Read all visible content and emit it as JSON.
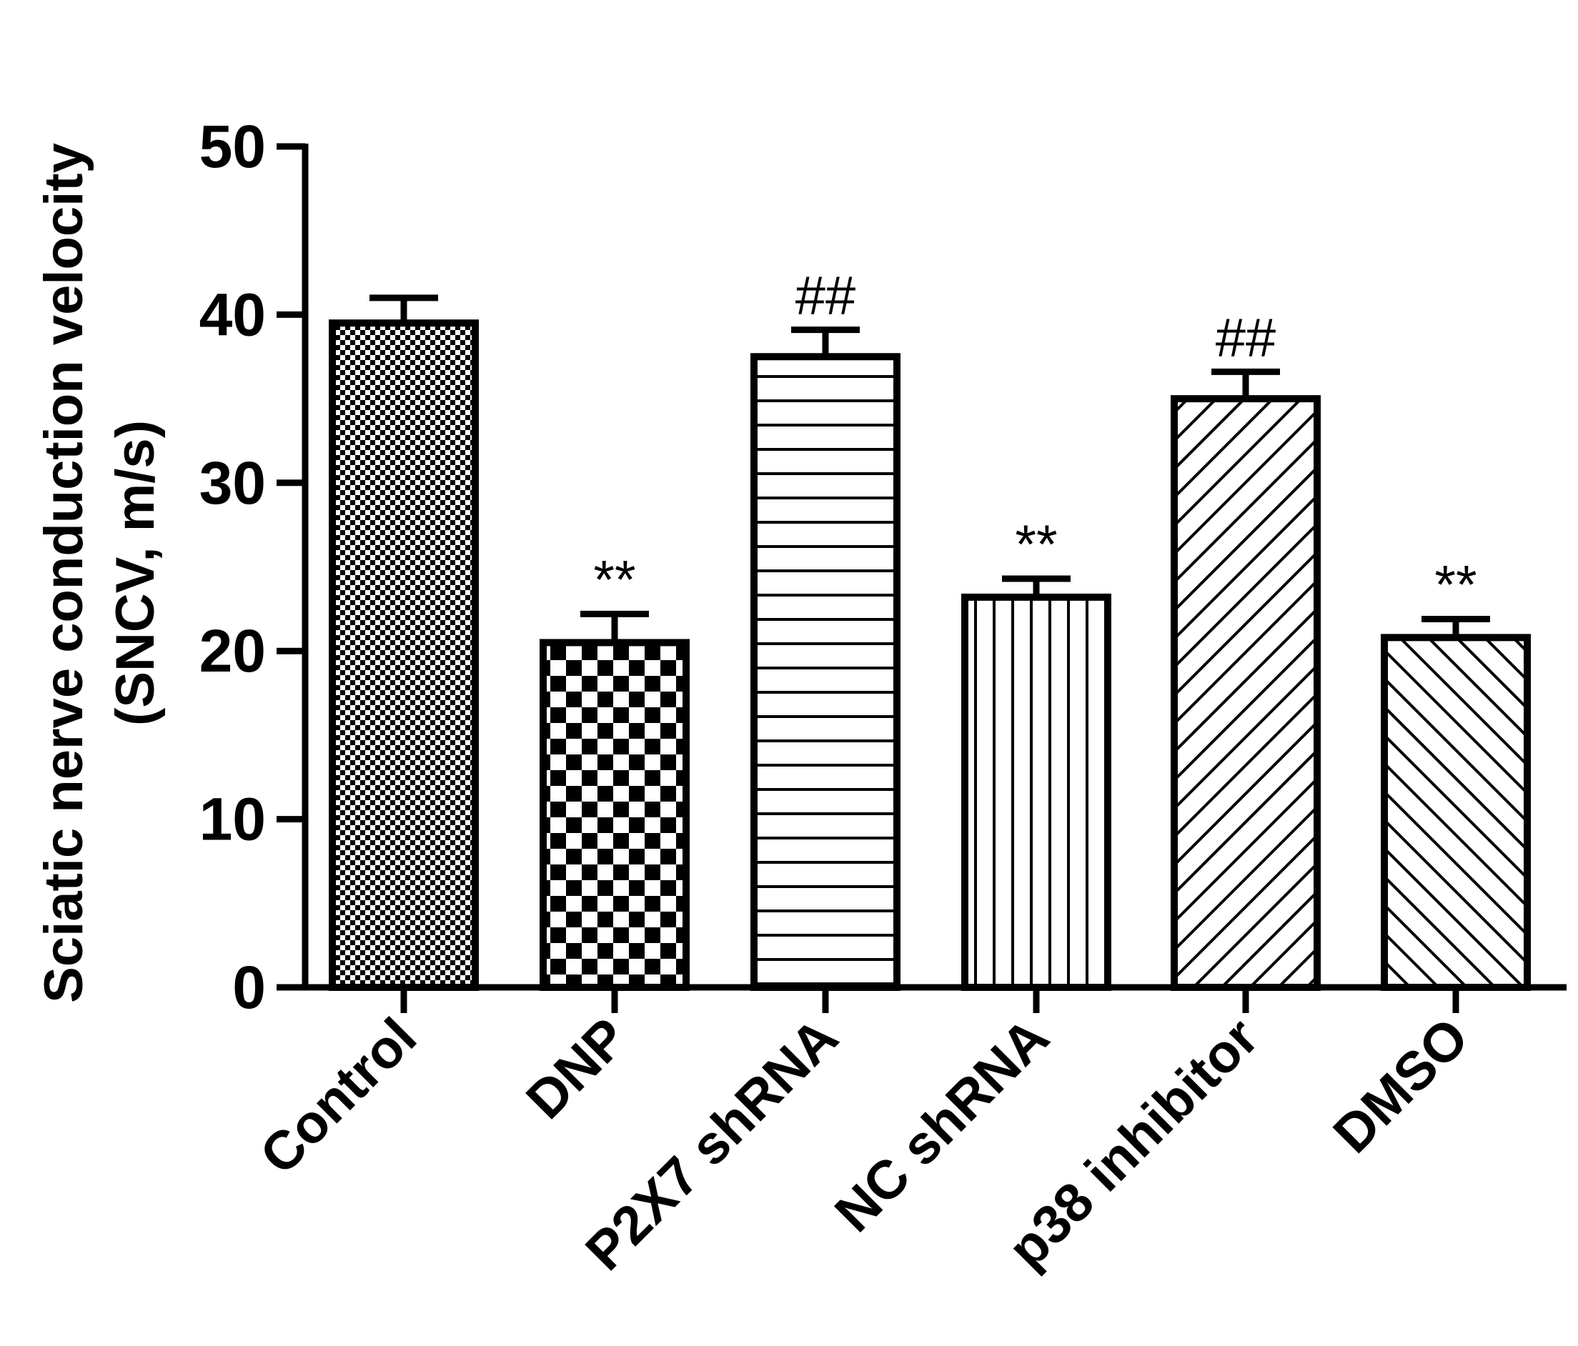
{
  "chart_data": {
    "type": "bar",
    "ylabel_lines": [
      "Sciatic nerve conduction velocity",
      "(SNCV, m/s)"
    ],
    "xlabel": "",
    "ylim": [
      0,
      50
    ],
    "yticks": [
      "0",
      "10",
      "20",
      "30",
      "40",
      "50"
    ],
    "grid": false,
    "categories": [
      "Control",
      "DNP",
      "P2X7 shRNA",
      "NC shRNA",
      "p38 inhibitor",
      "DMSO"
    ],
    "values": [
      39.5,
      20.5,
      37.5,
      23.2,
      35.0,
      20.8
    ],
    "errors": [
      1.5,
      1.7,
      1.6,
      1.1,
      1.6,
      1.1
    ],
    "annotations": [
      "",
      "**",
      "##",
      "**",
      "##",
      "**"
    ],
    "patterns": [
      "fine-checker",
      "coarse-checker",
      "horizontal-lines",
      "vertical-lines",
      "diagonal-up",
      "diagonal-down"
    ],
    "colors": {
      "bar_stroke": "#000000",
      "bar_fill": "#ffffff",
      "pattern": "#000000"
    }
  }
}
